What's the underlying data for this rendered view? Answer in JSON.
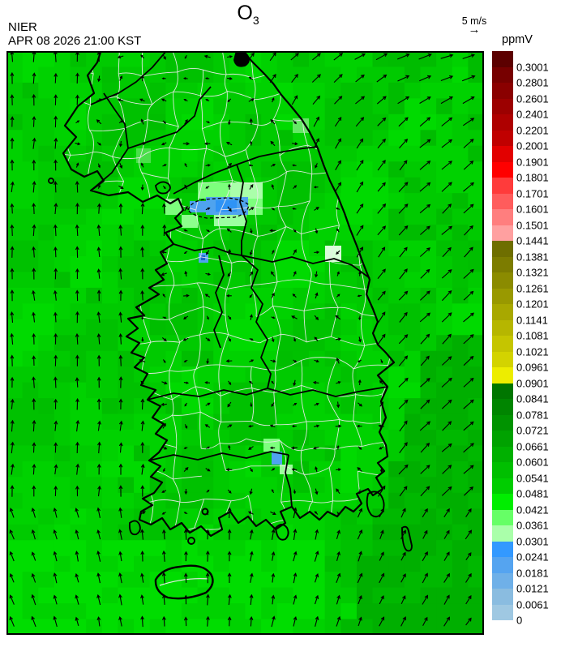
{
  "header": {
    "agency": "NIER",
    "datetime": "APR 08 2026 21:00 KST",
    "title_main": "O",
    "title_sub": "3",
    "wind_legend_value": "5 m/s",
    "wind_legend_arrow": "→",
    "unit_label": "ppmV"
  },
  "colorbar": {
    "segments": [
      {
        "color": "#5C0000",
        "label": "0.3001"
      },
      {
        "color": "#770000",
        "label": "0.2801"
      },
      {
        "color": "#8A0000",
        "label": "0.2601"
      },
      {
        "color": "#9C0000",
        "label": "0.2401"
      },
      {
        "color": "#AE0000",
        "label": "0.2201"
      },
      {
        "color": "#C00000",
        "label": "0.2001"
      },
      {
        "color": "#E20000",
        "label": "0.1901"
      },
      {
        "color": "#FF0000",
        "label": "0.1801"
      },
      {
        "color": "#FF3B3B",
        "label": "0.1701"
      },
      {
        "color": "#FF5C5C",
        "label": "0.1601"
      },
      {
        "color": "#FF7E7E",
        "label": "0.1501"
      },
      {
        "color": "#FFA0A0",
        "label": "0.1441"
      },
      {
        "color": "#6E6E00",
        "label": "0.1381"
      },
      {
        "color": "#7C7C00",
        "label": "0.1321"
      },
      {
        "color": "#8B8B00",
        "label": "0.1261"
      },
      {
        "color": "#999900",
        "label": "0.1201"
      },
      {
        "color": "#A8A800",
        "label": "0.1141"
      },
      {
        "color": "#B6B600",
        "label": "0.1081"
      },
      {
        "color": "#C5C500",
        "label": "0.1021"
      },
      {
        "color": "#D3D300",
        "label": "0.0961"
      },
      {
        "color": "#EDED00",
        "label": "0.0901"
      },
      {
        "color": "#007600",
        "label": "0.0841"
      },
      {
        "color": "#008500",
        "label": "0.0781"
      },
      {
        "color": "#009300",
        "label": "0.0721"
      },
      {
        "color": "#00A200",
        "label": "0.0661"
      },
      {
        "color": "#00B000",
        "label": "0.0601"
      },
      {
        "color": "#00BF00",
        "label": "0.0541"
      },
      {
        "color": "#00CD00",
        "label": "0.0481"
      },
      {
        "color": "#00EE00",
        "label": "0.0421"
      },
      {
        "color": "#66FF66",
        "label": "0.0361"
      },
      {
        "color": "#AAFFAA",
        "label": "0.0301"
      },
      {
        "color": "#3399FF",
        "label": "0.0241"
      },
      {
        "color": "#55A4F0",
        "label": "0.0181"
      },
      {
        "color": "#6FB0E8",
        "label": "0.0121"
      },
      {
        "color": "#8ABCE0",
        "label": "0.0061"
      },
      {
        "color": "#9FC8E2",
        "label": "0"
      }
    ]
  },
  "palette": {
    "greens": [
      "#00CA00",
      "#00D200",
      "#00DA00",
      "#00C100"
    ],
    "green_dark": "#00B800",
    "green_dark2": "#00AF00",
    "green_bright": "#00DD00",
    "light_green": "#7DFF7D",
    "pale_green": "#AAFFAA",
    "near_white_green": "#D9FFD9",
    "blue": "#4FA3EE",
    "blue_bright": "#2F93F5",
    "blue_deep": "#1C64C8",
    "county_line": "#EAEAEA",
    "boundary": "#000000",
    "background": "#FFFFFF"
  }
}
